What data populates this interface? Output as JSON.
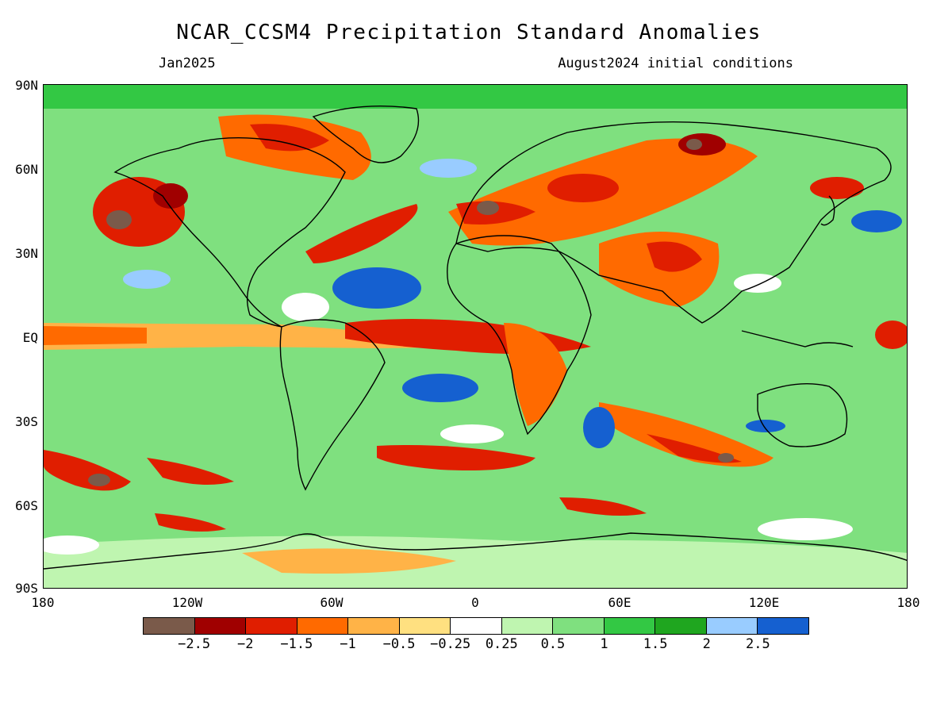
{
  "header": {
    "title": "NCAR_CCSM4 Precipitation Standard Anomalies",
    "target_month": "Jan2025",
    "init_note": "August2024 initial conditions"
  },
  "axes": {
    "y_labels": [
      "90N",
      "60N",
      "30N",
      "EQ",
      "30S",
      "60S",
      "90S"
    ],
    "x_labels": [
      "180",
      "120W",
      "60W",
      "0",
      "60E",
      "120E",
      "180"
    ]
  },
  "legend": {
    "colors": [
      "#7a5a4a",
      "#a00000",
      "#e01e00",
      "#ff6a00",
      "#ffb347",
      "#ffe080",
      "#ffffff",
      "#bff5b0",
      "#7fe07f",
      "#33c844",
      "#1fa61f",
      "#99ccff",
      "#1560d0"
    ],
    "labels": [
      "−2.5",
      "−2",
      "−1.5",
      "−1",
      "−0.5",
      "−0.25",
      "0.25",
      "0.5",
      "1",
      "1.5",
      "2",
      "2.5"
    ]
  },
  "regions": [
    {
      "name": "eq-pacific-dry",
      "color": "#ffb347"
    },
    {
      "name": "atlantic-wet",
      "color": "#1560d0"
    },
    {
      "name": "ne-pacific-dry",
      "color": "#a00000"
    }
  ]
}
